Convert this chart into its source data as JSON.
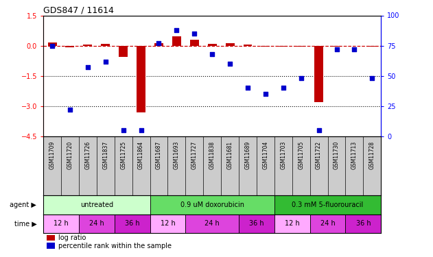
{
  "title": "GDS847 / 11614",
  "samples": [
    "GSM11709",
    "GSM11720",
    "GSM11726",
    "GSM11837",
    "GSM11725",
    "GSM11864",
    "GSM11687",
    "GSM11693",
    "GSM11727",
    "GSM11838",
    "GSM11681",
    "GSM11689",
    "GSM11704",
    "GSM11703",
    "GSM11705",
    "GSM11722",
    "GSM11730",
    "GSM11713",
    "GSM11728"
  ],
  "log_ratio": [
    0.15,
    -0.07,
    0.06,
    0.09,
    -0.55,
    -3.3,
    0.12,
    0.45,
    0.3,
    0.08,
    0.12,
    0.06,
    -0.05,
    -0.06,
    -0.05,
    -2.8,
    -0.03,
    -0.02,
    -0.03
  ],
  "percentile": [
    75,
    22,
    57,
    62,
    5,
    5,
    77,
    88,
    85,
    68,
    60,
    40,
    35,
    40,
    48,
    5,
    72,
    72,
    48
  ],
  "bar_color": "#c00000",
  "dot_color": "#0000cc",
  "ref_line_color": "#cc0000",
  "ylim_left": [
    -4.5,
    1.5
  ],
  "ylim_right": [
    0,
    100
  ],
  "yticks_left": [
    1.5,
    0,
    -1.5,
    -3,
    -4.5
  ],
  "yticks_right": [
    100,
    75,
    50,
    25,
    0
  ],
  "agent_groups": [
    {
      "label": "untreated",
      "start": 0,
      "end": 5,
      "color": "#ccffcc"
    },
    {
      "label": "0.9 uM doxorubicin",
      "start": 6,
      "end": 12,
      "color": "#66dd66"
    },
    {
      "label": "0.3 mM 5-fluorouracil",
      "start": 13,
      "end": 18,
      "color": "#33bb33"
    }
  ],
  "time_groups": [
    {
      "label": "12 h",
      "start": 0,
      "end": 1,
      "color": "#ffaaff"
    },
    {
      "label": "24 h",
      "start": 2,
      "end": 3,
      "color": "#dd44dd"
    },
    {
      "label": "36 h",
      "start": 4,
      "end": 5,
      "color": "#cc22cc"
    },
    {
      "label": "12 h",
      "start": 6,
      "end": 7,
      "color": "#ffaaff"
    },
    {
      "label": "24 h",
      "start": 8,
      "end": 10,
      "color": "#dd44dd"
    },
    {
      "label": "36 h",
      "start": 11,
      "end": 12,
      "color": "#cc22cc"
    },
    {
      "label": "12 h",
      "start": 13,
      "end": 14,
      "color": "#ffaaff"
    },
    {
      "label": "24 h",
      "start": 15,
      "end": 16,
      "color": "#dd44dd"
    },
    {
      "label": "36 h",
      "start": 17,
      "end": 18,
      "color": "#cc22cc"
    }
  ],
  "bg_color": "#ffffff",
  "sample_bg": "#cccccc",
  "label_agent": "agent",
  "label_time": "time",
  "legend_log": "log ratio",
  "legend_pct": "percentile rank within the sample"
}
